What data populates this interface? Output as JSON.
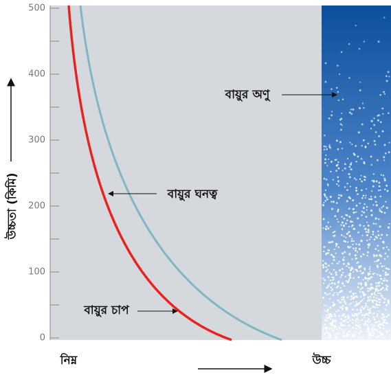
{
  "chart_data": {
    "type": "diagram",
    "ylabel": "উচ্চতা (কিমি)",
    "ylim": [
      0,
      500
    ],
    "yticks": [
      0,
      100,
      200,
      300,
      400,
      500
    ],
    "x_low_label": "নিম্ন",
    "x_high_label": "উচ্চ",
    "annotations": [
      "বায়ুর অণু",
      "বায়ুর ঘনত্ব",
      "বায়ুর চাপ"
    ],
    "series": [
      {
        "name": "বায়ুর চাপ",
        "color": "#e8231f"
      },
      {
        "name": "বায়ুর ঘনত্ব",
        "color": "#7fb6c6"
      }
    ]
  }
}
